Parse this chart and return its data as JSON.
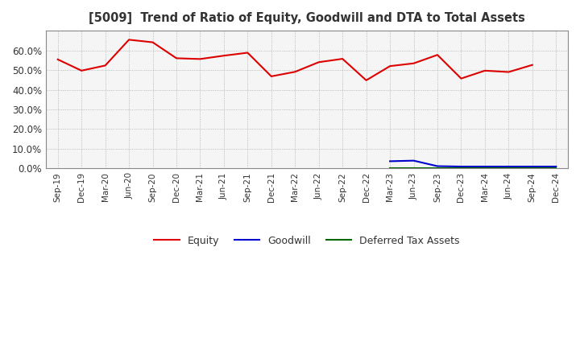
{
  "title": "[5009]  Trend of Ratio of Equity, Goodwill and DTA to Total Assets",
  "x_labels": [
    "Sep-19",
    "Dec-19",
    "Mar-20",
    "Jun-20",
    "Sep-20",
    "Dec-20",
    "Mar-21",
    "Jun-21",
    "Sep-21",
    "Dec-21",
    "Mar-22",
    "Jun-22",
    "Sep-22",
    "Dec-22",
    "Mar-23",
    "Jun-23",
    "Sep-23",
    "Dec-23",
    "Mar-24",
    "Jun-24",
    "Sep-24",
    "Dec-24"
  ],
  "equity": [
    0.554,
    0.497,
    0.523,
    0.654,
    0.641,
    0.56,
    0.556,
    0.573,
    0.588,
    0.468,
    0.491,
    0.54,
    0.557,
    0.448,
    0.52,
    0.534,
    0.577,
    0.457,
    0.497,
    0.49,
    0.526,
    null
  ],
  "goodwill": [
    null,
    null,
    null,
    null,
    null,
    null,
    null,
    null,
    null,
    null,
    null,
    null,
    null,
    null,
    0.037,
    0.04,
    0.012,
    0.01,
    0.01,
    0.01,
    0.01,
    0.01
  ],
  "dta": [
    null,
    null,
    null,
    null,
    null,
    null,
    null,
    null,
    null,
    null,
    null,
    null,
    null,
    null,
    0.002,
    0.002,
    0.002,
    0.002,
    0.002,
    0.002,
    0.002,
    0.002
  ],
  "equity_color": "#dd0000",
  "goodwill_color": "#0000cc",
  "dta_color": "#006600",
  "ylim": [
    0.0,
    0.7
  ],
  "yticks": [
    0.0,
    0.1,
    0.2,
    0.3,
    0.4,
    0.5,
    0.6
  ],
  "background_color": "#ffffff",
  "plot_bg_color": "#f5f5f5",
  "grid_color": "#aaaaaa",
  "legend_labels": [
    "Equity",
    "Goodwill",
    "Deferred Tax Assets"
  ]
}
